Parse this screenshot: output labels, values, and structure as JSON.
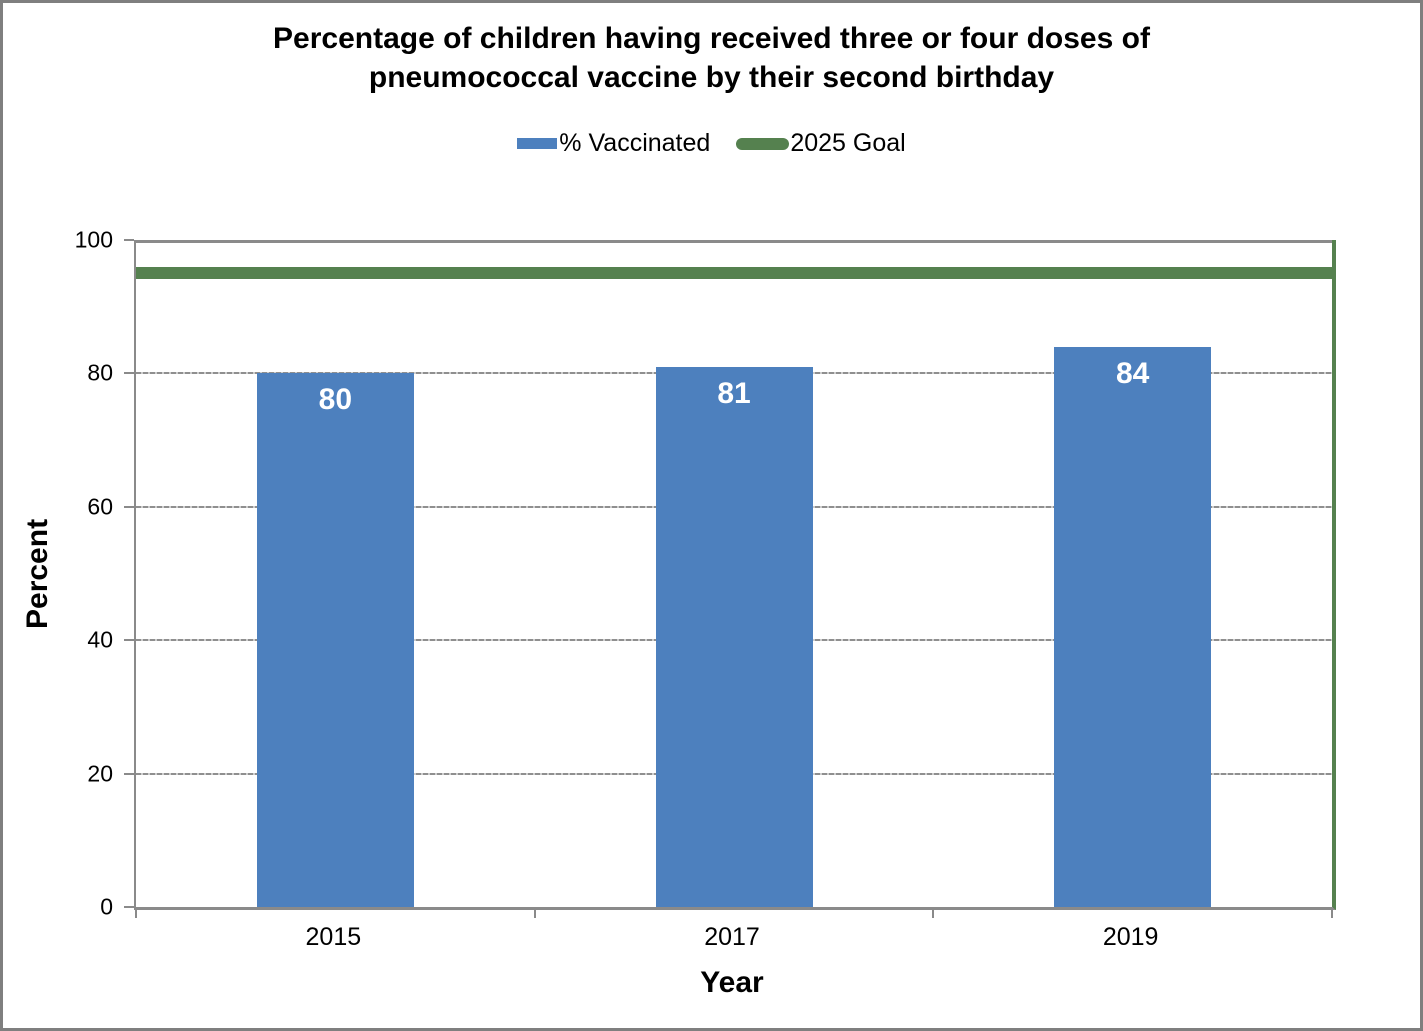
{
  "chart_data": {
    "type": "bar",
    "title": "Percentage of children having received three or four doses of pneumococcal vaccine by their second birthday",
    "title_lines": [
      "Percentage of children having received three or four doses of",
      "pneumococcal vaccine by their second birthday"
    ],
    "categories": [
      "2015",
      "2017",
      "2019"
    ],
    "series": [
      {
        "name": "% Vaccinated",
        "type": "bar",
        "values": [
          80,
          81,
          84
        ],
        "color": "#4D80BE",
        "label_color": "#ffffff"
      },
      {
        "name": "2025 Goal",
        "type": "line",
        "value": 95,
        "color": "#55814F"
      }
    ],
    "bar_value_labels": [
      "80",
      "81",
      "84"
    ],
    "xlabel": "Year",
    "ylabel": "Percent",
    "ylim": [
      0,
      100
    ],
    "y_ticks": [
      0,
      20,
      40,
      60,
      80,
      100
    ],
    "grid": "horizontal-dashed-gray",
    "legend_position": "top-center",
    "axis_color": "#8a8a8a",
    "frame_border_color": "#7f7f7f",
    "background_color": "#ffffff"
  }
}
